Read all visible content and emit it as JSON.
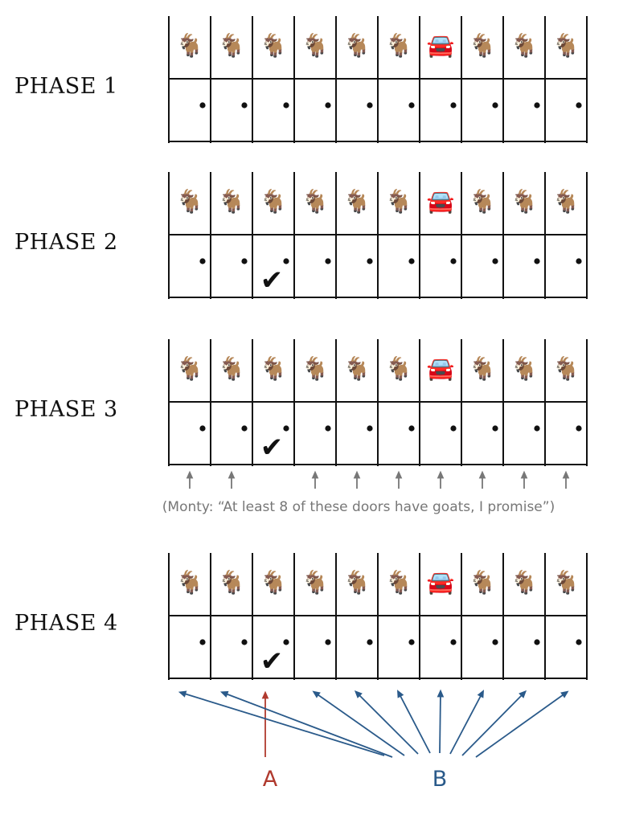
{
  "doors_per_phase": 10,
  "phases": [
    {
      "label": "PHASE 1",
      "prizes": [
        "🐐",
        "🐐",
        "🐐",
        "🐐",
        "🐐",
        "🐐",
        "🚘",
        "🐐",
        "🐐",
        "🐐"
      ],
      "selected_door": null,
      "up_arrow_doors": [],
      "caption": ""
    },
    {
      "label": "PHASE 2",
      "prizes": [
        "🐐",
        "🐐",
        "🐐",
        "🐐",
        "🐐",
        "🐐",
        "🚘",
        "🐐",
        "🐐",
        "🐐"
      ],
      "selected_door": 3,
      "up_arrow_doors": [],
      "caption": ""
    },
    {
      "label": "PHASE 3",
      "prizes": [
        "🐐",
        "🐐",
        "🐐",
        "🐐",
        "🐐",
        "🐐",
        "🚘",
        "🐐",
        "🐐",
        "🐐"
      ],
      "selected_door": 3,
      "up_arrow_doors": [
        1,
        2,
        4,
        5,
        6,
        7,
        8,
        9,
        10
      ],
      "caption": "(Monty: “At least 8 of these doors have goats, I promise”)"
    },
    {
      "label": "PHASE 4",
      "prizes": [
        "🐐",
        "🐐",
        "🐐",
        "🐐",
        "🐐",
        "🐐",
        "🚘",
        "🐐",
        "🐐",
        "🐐"
      ],
      "selected_door": 3,
      "up_arrow_doors": [],
      "caption": ""
    }
  ],
  "strategies": {
    "stay": {
      "label": "A",
      "color": "#b03a2e",
      "targets": [
        3
      ]
    },
    "switch": {
      "label": "B",
      "color": "#2a5a8a",
      "targets": [
        1,
        2,
        4,
        5,
        6,
        7,
        8,
        9,
        10
      ]
    }
  },
  "check_mark": "✔",
  "arrow_color": "#777777"
}
